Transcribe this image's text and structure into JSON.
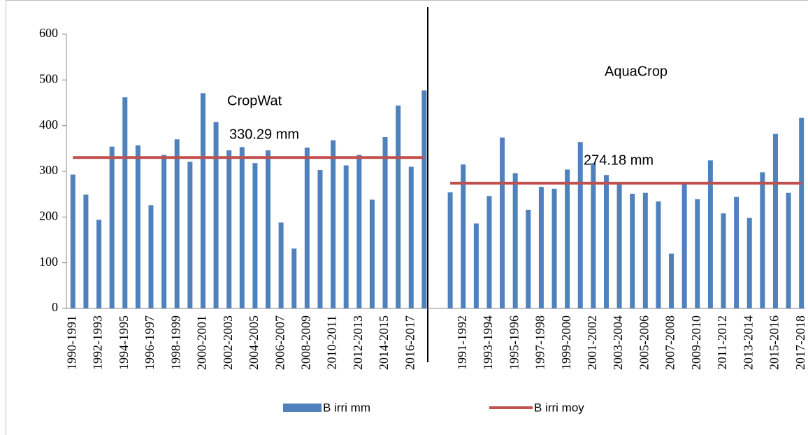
{
  "chart_data": {
    "type": "bar",
    "categories": [
      "1990-1991",
      null,
      "1992-1993",
      null,
      "1994-1995",
      null,
      "1996-1997",
      null,
      "1998-1999",
      null,
      "2000-2001",
      null,
      "2002-2003",
      null,
      "2004-2005",
      null,
      "2006-2007",
      null,
      "2008-2009",
      null,
      "2010-2011",
      null,
      "2012-2013",
      null,
      "2014-2015",
      null,
      "2016-2017",
      null,
      null,
      null,
      "1991-1992",
      null,
      "1993-1994",
      null,
      "1995-1996",
      null,
      "1997-1998",
      null,
      "1999-2000",
      null,
      "2001-2002",
      null,
      "2003-2004",
      null,
      "2005-2006",
      null,
      "2007-2008",
      null,
      "2009-2010",
      null,
      "2011-2012",
      null,
      "2013-2014",
      null,
      "2015-2016",
      null,
      "2017-2018"
    ],
    "series": [
      {
        "name": "B irri mm",
        "type": "bar",
        "color": "#4f81bd",
        "values": [
          293,
          249,
          194,
          354,
          462,
          357,
          226,
          336,
          370,
          321,
          471,
          408,
          346,
          353,
          318,
          346,
          188,
          131,
          352,
          303,
          368,
          313,
          336,
          238,
          375,
          444,
          310,
          477,
          null,
          254,
          315,
          186,
          246,
          374,
          296,
          216,
          266,
          262,
          304,
          364,
          318,
          292,
          275,
          251,
          253,
          234,
          120,
          275,
          239,
          324,
          208,
          244,
          198,
          298,
          382,
          253,
          417
        ]
      },
      {
        "name": "B irri moy",
        "type": "line",
        "color": "#c0504d",
        "values": [
          330.29,
          330.29,
          330.29,
          330.29,
          330.29,
          330.29,
          330.29,
          330.29,
          330.29,
          330.29,
          330.29,
          330.29,
          330.29,
          330.29,
          330.29,
          330.29,
          330.29,
          330.29,
          330.29,
          330.29,
          330.29,
          330.29,
          330.29,
          330.29,
          330.29,
          330.29,
          330.29,
          330.29,
          null,
          274.18,
          274.18,
          274.18,
          274.18,
          274.18,
          274.18,
          274.18,
          274.18,
          274.18,
          274.18,
          274.18,
          274.18,
          274.18,
          274.18,
          274.18,
          274.18,
          274.18,
          274.18,
          274.18,
          274.18,
          274.18,
          274.18,
          274.18,
          274.18,
          274.18,
          274.18,
          274.18,
          274.18
        ]
      }
    ],
    "annotations": [
      "CropWat",
      "AquaCrop",
      "330.29 mm",
      "274.18 mm"
    ],
    "ylim": [
      0,
      600
    ],
    "yticks": [
      0,
      100,
      200,
      300,
      400,
      500,
      600
    ],
    "grid": false,
    "legend": "bottom"
  }
}
